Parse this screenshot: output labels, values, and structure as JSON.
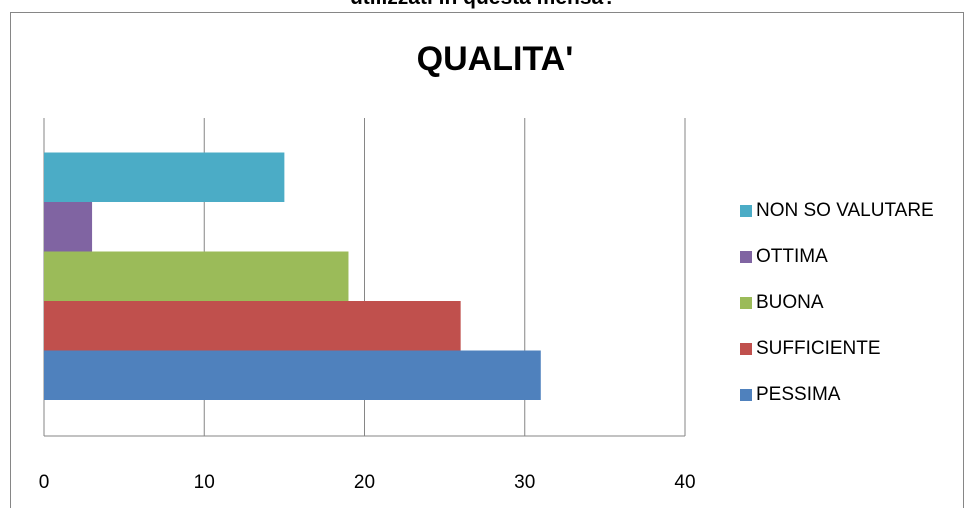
{
  "header_fragment": "utilizzati in questa mensa?",
  "chart_data": {
    "type": "bar",
    "orientation": "horizontal",
    "title": "QUALITA'",
    "xlabel": "",
    "ylabel": "",
    "xlim": [
      0,
      40
    ],
    "x_ticks": [
      "0",
      "10",
      "20",
      "30",
      "40"
    ],
    "grid": "vertical",
    "legend_position": "right",
    "series": [
      {
        "name": "PESSIMA",
        "value": 31,
        "color": "#4F81BD"
      },
      {
        "name": "SUFFICIENTE",
        "value": 26,
        "color": "#C0504D"
      },
      {
        "name": "BUONA",
        "value": 19,
        "color": "#9BBB59"
      },
      {
        "name": "OTTIMA",
        "value": 3,
        "color": "#8064A2"
      },
      {
        "name": "NON SO VALUTARE",
        "value": 15,
        "color": "#4BACC6"
      }
    ]
  }
}
